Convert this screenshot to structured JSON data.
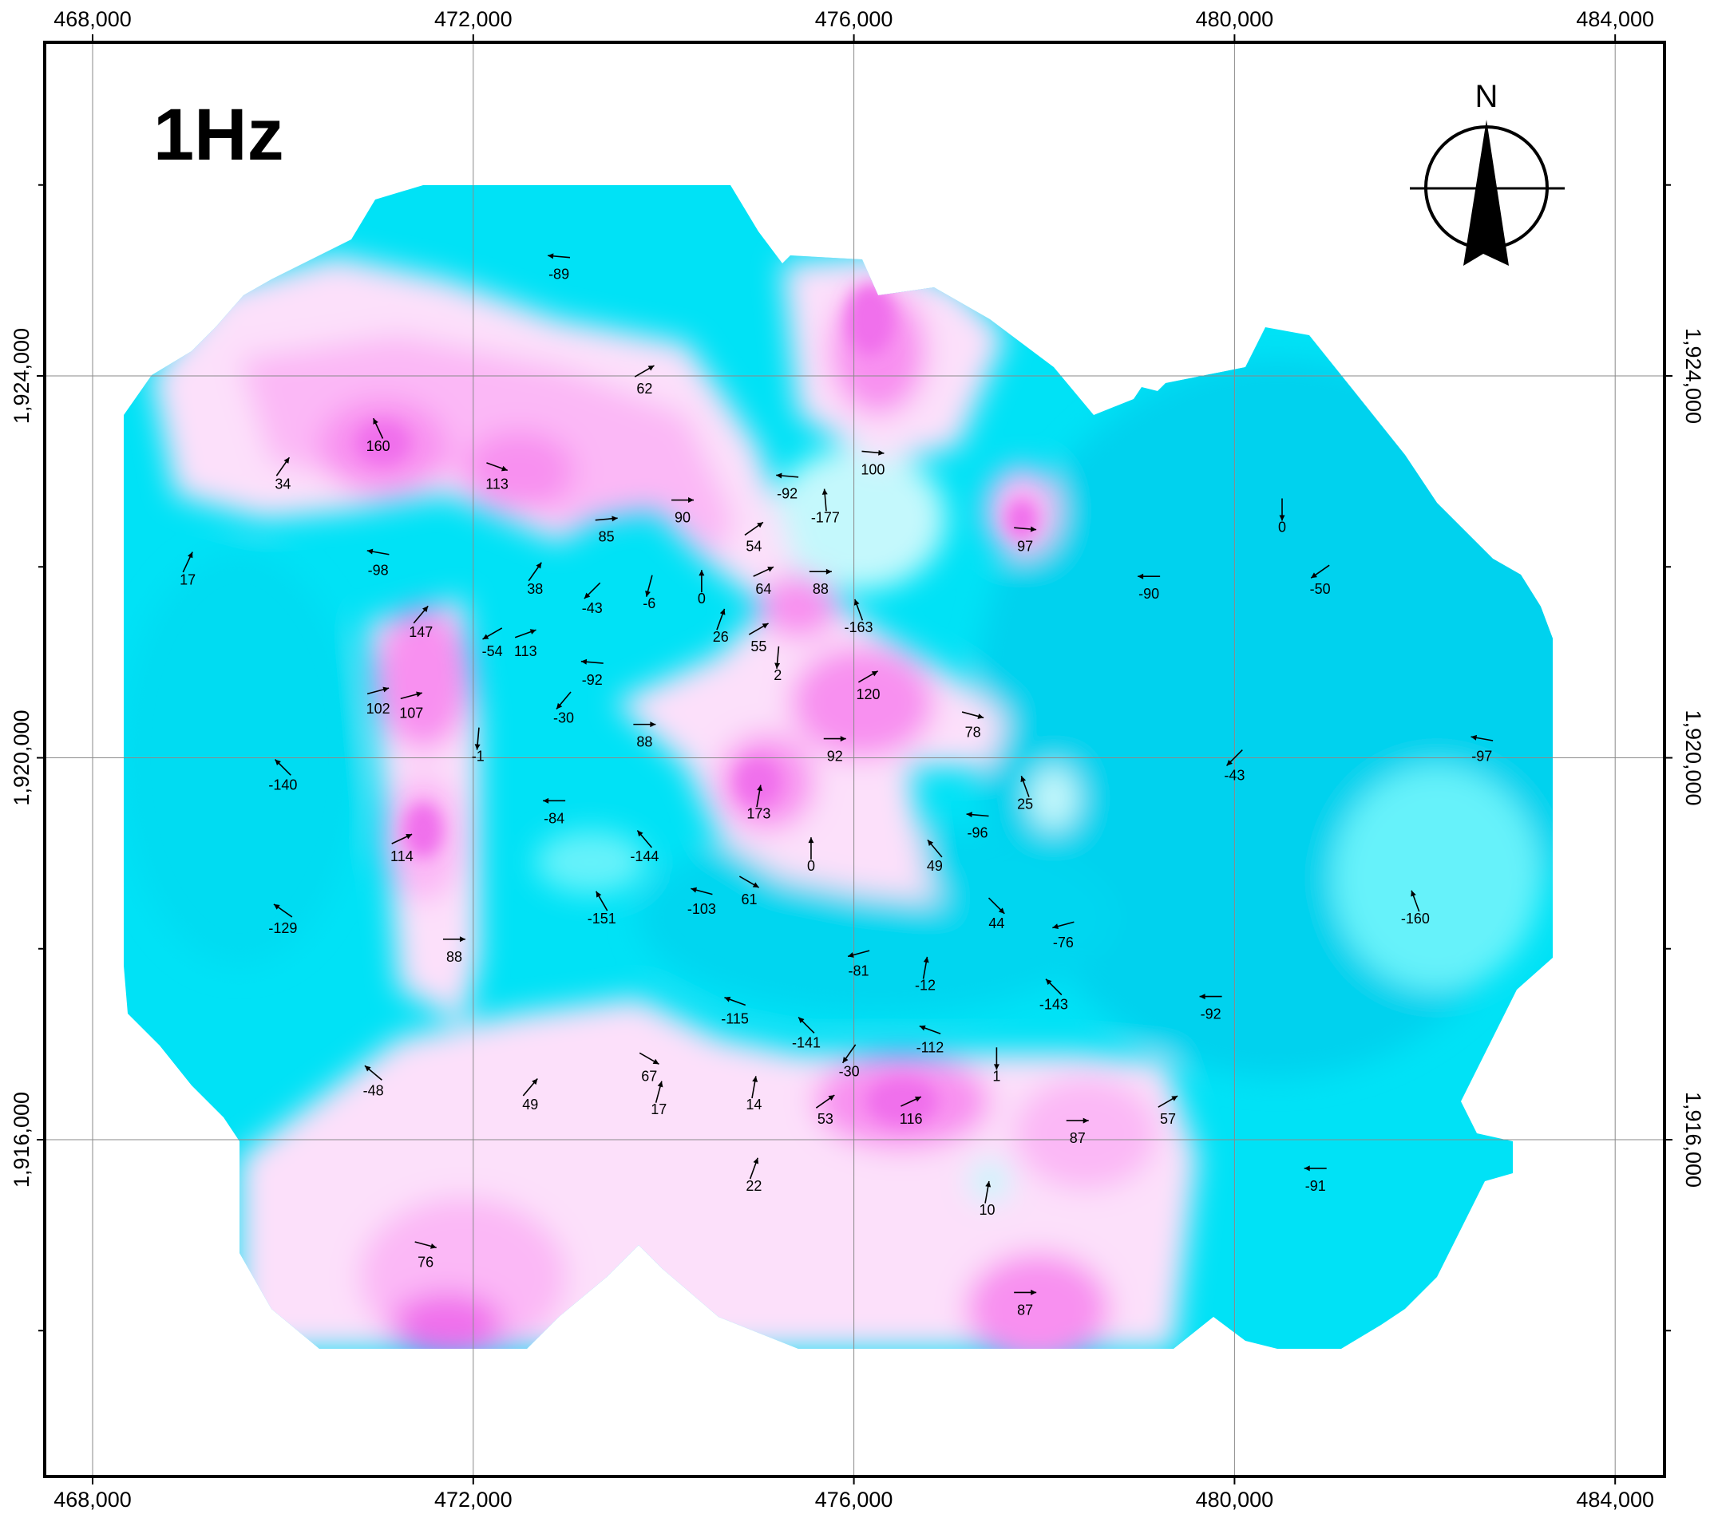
{
  "map": {
    "title": "1Hz",
    "north_label": "N",
    "x_ticks": [
      {
        "value": 468000,
        "label": "468,000"
      },
      {
        "value": 472000,
        "label": "472,000"
      },
      {
        "value": 476000,
        "label": "476,000"
      },
      {
        "value": 480000,
        "label": "480,000"
      },
      {
        "value": 484000,
        "label": "484,000"
      }
    ],
    "y_ticks": [
      {
        "value": 1924000,
        "label": "1,924,000"
      },
      {
        "value": 1920000,
        "label": "1,920,000"
      },
      {
        "value": 1916000,
        "label": "1,916,000"
      }
    ],
    "minor_y_ticks": [
      1926000,
      1922000,
      1918000,
      1914000
    ],
    "colors": {
      "cyan_deep": "#00D0EE",
      "cyan": "#00E8F8",
      "cyan_light": "#66F2FA",
      "cyan_pale": "#C4F8FC",
      "pink_pale": "#FCE0FA",
      "pink": "#FBB8F6",
      "pink_mid": "#F890F0",
      "magenta": "#F070EC"
    }
  },
  "points": [
    {
      "x": 472900,
      "y": 1925250,
      "v": "-89",
      "a": 175
    },
    {
      "x": 473800,
      "y": 1924050,
      "v": "62",
      "a": 30
    },
    {
      "x": 471000,
      "y": 1923450,
      "v": "160",
      "a": 115
    },
    {
      "x": 470000,
      "y": 1923050,
      "v": "34",
      "a": 55
    },
    {
      "x": 472250,
      "y": 1923050,
      "v": "113",
      "a": -20
    },
    {
      "x": 475300,
      "y": 1922950,
      "v": "-92",
      "a": 175
    },
    {
      "x": 476200,
      "y": 1923200,
      "v": "100",
      "a": -5
    },
    {
      "x": 474200,
      "y": 1922700,
      "v": "90",
      "a": 0
    },
    {
      "x": 473400,
      "y": 1922500,
      "v": "85",
      "a": 5
    },
    {
      "x": 475700,
      "y": 1922700,
      "v": "-177",
      "a": 95
    },
    {
      "x": 474950,
      "y": 1922400,
      "v": "54",
      "a": 35
    },
    {
      "x": 477800,
      "y": 1922400,
      "v": "97",
      "a": -5
    },
    {
      "x": 480500,
      "y": 1922600,
      "v": "0",
      "a": -90
    },
    {
      "x": 469000,
      "y": 1922050,
      "v": "17",
      "a": 65
    },
    {
      "x": 471000,
      "y": 1922150,
      "v": "-98",
      "a": 170
    },
    {
      "x": 472650,
      "y": 1921950,
      "v": "38",
      "a": 55
    },
    {
      "x": 473250,
      "y": 1921750,
      "v": "-43",
      "a": 225
    },
    {
      "x": 473850,
      "y": 1921800,
      "v": "-6",
      "a": 255
    },
    {
      "x": 474400,
      "y": 1921850,
      "v": "0",
      "a": 90
    },
    {
      "x": 475050,
      "y": 1921950,
      "v": "64",
      "a": 25
    },
    {
      "x": 475650,
      "y": 1921950,
      "v": "88",
      "a": 0
    },
    {
      "x": 479100,
      "y": 1921900,
      "v": "-90",
      "a": 180
    },
    {
      "x": 480900,
      "y": 1921950,
      "v": "-50",
      "a": 215
    },
    {
      "x": 471450,
      "y": 1921500,
      "v": "147",
      "a": 50
    },
    {
      "x": 472200,
      "y": 1921300,
      "v": "-54",
      "a": 210
    },
    {
      "x": 472550,
      "y": 1921300,
      "v": "113",
      "a": 20
    },
    {
      "x": 474600,
      "y": 1921450,
      "v": "26",
      "a": 70
    },
    {
      "x": 475000,
      "y": 1921350,
      "v": "55",
      "a": 30
    },
    {
      "x": 476050,
      "y": 1921550,
      "v": "-163",
      "a": 110
    },
    {
      "x": 475200,
      "y": 1921050,
      "v": "2",
      "a": 265
    },
    {
      "x": 473250,
      "y": 1921000,
      "v": "-92",
      "a": 175
    },
    {
      "x": 476150,
      "y": 1920850,
      "v": "120",
      "a": 30
    },
    {
      "x": 471000,
      "y": 1920700,
      "v": "102",
      "a": 15
    },
    {
      "x": 471350,
      "y": 1920650,
      "v": "107",
      "a": 15
    },
    {
      "x": 472950,
      "y": 1920600,
      "v": "-30",
      "a": 230
    },
    {
      "x": 473800,
      "y": 1920350,
      "v": "88",
      "a": 0
    },
    {
      "x": 477250,
      "y": 1920450,
      "v": "78",
      "a": -15
    },
    {
      "x": 472050,
      "y": 1920200,
      "v": "-1",
      "a": 265
    },
    {
      "x": 475800,
      "y": 1920200,
      "v": "92",
      "a": 0
    },
    {
      "x": 480000,
      "y": 1920000,
      "v": "-43",
      "a": 225
    },
    {
      "x": 482600,
      "y": 1920200,
      "v": "-97",
      "a": 170
    },
    {
      "x": 470000,
      "y": 1919900,
      "v": "-140",
      "a": 135
    },
    {
      "x": 475000,
      "y": 1919600,
      "v": "173",
      "a": 80
    },
    {
      "x": 472850,
      "y": 1919550,
      "v": "-84",
      "a": 180
    },
    {
      "x": 477800,
      "y": 1919700,
      "v": "25",
      "a": 110
    },
    {
      "x": 477300,
      "y": 1919400,
      "v": "-96",
      "a": 175
    },
    {
      "x": 471250,
      "y": 1919150,
      "v": "114",
      "a": 25
    },
    {
      "x": 473800,
      "y": 1919150,
      "v": "-144",
      "a": 130
    },
    {
      "x": 475550,
      "y": 1919050,
      "v": "0",
      "a": 90
    },
    {
      "x": 476850,
      "y": 1919050,
      "v": "49",
      "a": 130
    },
    {
      "x": 474900,
      "y": 1918700,
      "v": "61",
      "a": -30
    },
    {
      "x": 473350,
      "y": 1918500,
      "v": "-151",
      "a": 120
    },
    {
      "x": 474400,
      "y": 1918600,
      "v": "-103",
      "a": 165
    },
    {
      "x": 477500,
      "y": 1918450,
      "v": "44",
      "a": -45
    },
    {
      "x": 481900,
      "y": 1918500,
      "v": "-160",
      "a": 110
    },
    {
      "x": 470000,
      "y": 1918400,
      "v": "-129",
      "a": 145
    },
    {
      "x": 471800,
      "y": 1918100,
      "v": "88",
      "a": 0
    },
    {
      "x": 478200,
      "y": 1918250,
      "v": "-76",
      "a": 195
    },
    {
      "x": 476050,
      "y": 1917950,
      "v": "-81",
      "a": 195
    },
    {
      "x": 476750,
      "y": 1917800,
      "v": "-12",
      "a": 80
    },
    {
      "x": 478100,
      "y": 1917600,
      "v": "-143",
      "a": 135
    },
    {
      "x": 474750,
      "y": 1917450,
      "v": "-115",
      "a": 160
    },
    {
      "x": 479750,
      "y": 1917500,
      "v": "-92",
      "a": 180
    },
    {
      "x": 475500,
      "y": 1917200,
      "v": "-141",
      "a": 135
    },
    {
      "x": 476800,
      "y": 1917150,
      "v": "-112",
      "a": 160
    },
    {
      "x": 475950,
      "y": 1916900,
      "v": "-30",
      "a": 235
    },
    {
      "x": 477500,
      "y": 1916850,
      "v": "1",
      "a": 270
    },
    {
      "x": 473850,
      "y": 1916850,
      "v": "67",
      "a": -30
    },
    {
      "x": 470950,
      "y": 1916700,
      "v": "-48",
      "a": 140
    },
    {
      "x": 472600,
      "y": 1916550,
      "v": "49",
      "a": 50
    },
    {
      "x": 473950,
      "y": 1916500,
      "v": "17",
      "a": 75
    },
    {
      "x": 474950,
      "y": 1916550,
      "v": "14",
      "a": 80
    },
    {
      "x": 475700,
      "y": 1916400,
      "v": "53",
      "a": 35
    },
    {
      "x": 476600,
      "y": 1916400,
      "v": "116",
      "a": 25
    },
    {
      "x": 478350,
      "y": 1916200,
      "v": "87",
      "a": 0
    },
    {
      "x": 479300,
      "y": 1916400,
      "v": "57",
      "a": 30
    },
    {
      "x": 474950,
      "y": 1915700,
      "v": "22",
      "a": 70
    },
    {
      "x": 477400,
      "y": 1915450,
      "v": "10",
      "a": 80
    },
    {
      "x": 480850,
      "y": 1915700,
      "v": "-91",
      "a": 180
    },
    {
      "x": 471500,
      "y": 1914900,
      "v": "76",
      "a": -15
    },
    {
      "x": 477800,
      "y": 1914400,
      "v": "87",
      "a": 0
    }
  ]
}
